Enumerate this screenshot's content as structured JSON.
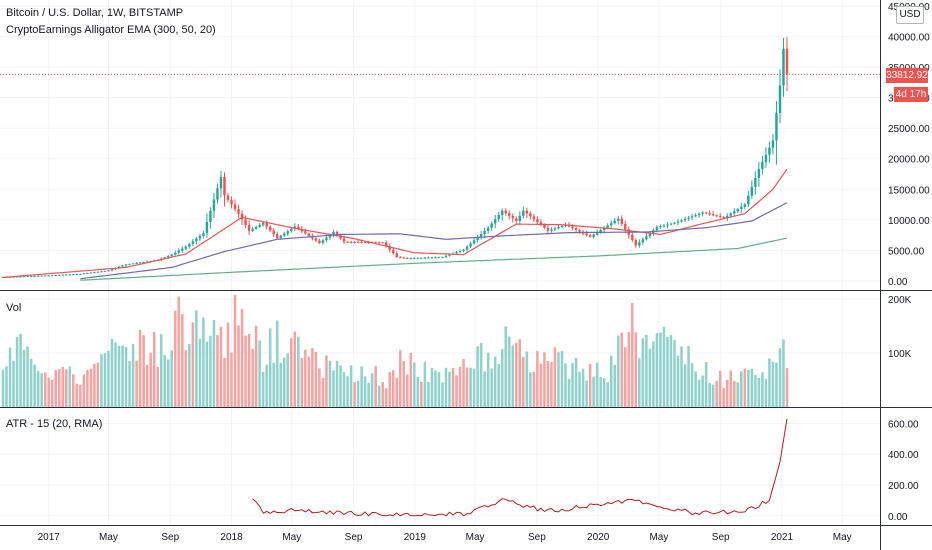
{
  "header": {
    "symbol_line": "Bitcoin / U.S. Dollar, 1W, BITSTAMP",
    "indicator_line": "CryptoEarnings Alligator EMA (300, 50, 20)",
    "currency_button": "USD"
  },
  "price_badge": "33812.92",
  "countdown_badge": "4d 17h",
  "colors": {
    "up": "#26a69a",
    "down": "#ef5350",
    "vol_up": "#8fd1cb",
    "vol_down": "#f4a3a1",
    "ema20": "#ef5350",
    "ema50": "#7068b0",
    "ema300": "#5fae85",
    "atr": "#b71c1c"
  },
  "chart_data": [
    {
      "id": "price",
      "type": "candlestick",
      "title": "Bitcoin / U.S. Dollar, 1W, BITSTAMP",
      "y_ticks": [
        "0.00",
        "5000.00",
        "10000.00",
        "15000.00",
        "20000.00",
        "25000.00",
        "30000.00",
        "35000.00",
        "40000.00",
        "45000.00"
      ],
      "ylim": [
        -1500,
        46000
      ],
      "x_ticks": [
        "2017",
        "May",
        "Sep",
        "2018",
        "May",
        "Sep",
        "2019",
        "May",
        "Sep",
        "2020",
        "May",
        "Sep",
        "2021",
        "May"
      ],
      "last_price": 33812.92,
      "anchors": [
        {
          "date": "2016-10-03",
          "close": 620
        },
        {
          "date": "2017-01-02",
          "close": 900
        },
        {
          "date": "2017-03-06",
          "close": 1150
        },
        {
          "date": "2017-05-01",
          "close": 1700
        },
        {
          "date": "2017-06-05",
          "close": 2700
        },
        {
          "date": "2017-08-07",
          "close": 3400
        },
        {
          "date": "2017-09-04",
          "close": 4300
        },
        {
          "date": "2017-10-02",
          "close": 5600
        },
        {
          "date": "2017-11-06",
          "close": 7800
        },
        {
          "date": "2017-12-11",
          "close": 17000
        },
        {
          "date": "2017-12-18",
          "close": 14000
        },
        {
          "date": "2018-01-15",
          "close": 11000
        },
        {
          "date": "2018-02-05",
          "close": 8200
        },
        {
          "date": "2018-03-05",
          "close": 9500
        },
        {
          "date": "2018-04-02",
          "close": 7000
        },
        {
          "date": "2018-05-07",
          "close": 8900
        },
        {
          "date": "2018-06-25",
          "close": 6200
        },
        {
          "date": "2018-07-23",
          "close": 8000
        },
        {
          "date": "2018-08-13",
          "close": 6400
        },
        {
          "date": "2018-10-29",
          "close": 6300
        },
        {
          "date": "2018-11-26",
          "close": 3900
        },
        {
          "date": "2018-12-17",
          "close": 3700
        },
        {
          "date": "2019-02-25",
          "close": 3900
        },
        {
          "date": "2019-04-08",
          "close": 5100
        },
        {
          "date": "2019-05-27",
          "close": 8700
        },
        {
          "date": "2019-06-24",
          "close": 11500
        },
        {
          "date": "2019-07-22",
          "close": 9800
        },
        {
          "date": "2019-08-05",
          "close": 11500
        },
        {
          "date": "2019-09-23",
          "close": 8200
        },
        {
          "date": "2019-10-28",
          "close": 9200
        },
        {
          "date": "2019-12-16",
          "close": 7200
        },
        {
          "date": "2020-02-10",
          "close": 10200
        },
        {
          "date": "2020-03-16",
          "close": 5800
        },
        {
          "date": "2020-04-27",
          "close": 8800
        },
        {
          "date": "2020-06-01",
          "close": 9500
        },
        {
          "date": "2020-07-27",
          "close": 11200
        },
        {
          "date": "2020-09-07",
          "close": 10300
        },
        {
          "date": "2020-10-19",
          "close": 12500
        },
        {
          "date": "2020-11-16",
          "close": 18300
        },
        {
          "date": "2020-12-14",
          "close": 23000
        },
        {
          "date": "2020-12-28",
          "close": 32000
        },
        {
          "date": "2021-01-04",
          "close": 38000
        },
        {
          "date": "2021-01-11",
          "close": 33812.92
        }
      ],
      "series": [
        {
          "name": "EMA 20",
          "points": [
            {
              "date": "2016-10-03",
              "value": 560
            },
            {
              "date": "2017-06-05",
              "value": 2200
            },
            {
              "date": "2017-10-02",
              "value": 4400
            },
            {
              "date": "2018-01-22",
              "value": 10400
            },
            {
              "date": "2018-05-07",
              "value": 8600
            },
            {
              "date": "2018-09-03",
              "value": 6900
            },
            {
              "date": "2018-12-31",
              "value": 4600
            },
            {
              "date": "2019-04-08",
              "value": 4300
            },
            {
              "date": "2019-07-22",
              "value": 9300
            },
            {
              "date": "2019-10-21",
              "value": 9200
            },
            {
              "date": "2020-02-03",
              "value": 8500
            },
            {
              "date": "2020-05-04",
              "value": 7600
            },
            {
              "date": "2020-08-03",
              "value": 9500
            },
            {
              "date": "2020-10-19",
              "value": 11000
            },
            {
              "date": "2020-12-14",
              "value": 15000
            },
            {
              "date": "2021-01-11",
              "value": 18300
            }
          ]
        },
        {
          "name": "EMA 50",
          "points": [
            {
              "date": "2017-03-06",
              "value": 350
            },
            {
              "date": "2017-09-04",
              "value": 2200
            },
            {
              "date": "2017-12-18",
              "value": 4800
            },
            {
              "date": "2018-04-02",
              "value": 6800
            },
            {
              "date": "2018-08-06",
              "value": 7600
            },
            {
              "date": "2018-12-03",
              "value": 7700
            },
            {
              "date": "2019-03-04",
              "value": 6800
            },
            {
              "date": "2019-07-01",
              "value": 7400
            },
            {
              "date": "2019-11-04",
              "value": 7900
            },
            {
              "date": "2020-04-06",
              "value": 8000
            },
            {
              "date": "2020-08-03",
              "value": 8700
            },
            {
              "date": "2020-11-02",
              "value": 9800
            },
            {
              "date": "2021-01-11",
              "value": 12800
            }
          ]
        },
        {
          "name": "EMA 300",
          "points": [
            {
              "date": "2017-03-06",
              "value": 100
            },
            {
              "date": "2018-01-01",
              "value": 1400
            },
            {
              "date": "2019-01-07",
              "value": 2900
            },
            {
              "date": "2020-01-06",
              "value": 4100
            },
            {
              "date": "2020-10-05",
              "value": 5300
            },
            {
              "date": "2021-01-11",
              "value": 7000
            }
          ]
        }
      ]
    },
    {
      "id": "volume",
      "type": "bar",
      "title": "Vol",
      "y_ticks": [
        "100K",
        "200K"
      ],
      "ylim": [
        0,
        215000
      ],
      "points": [
        {
          "date": "2016-10-03",
          "value": 65000,
          "dir": "up"
        },
        {
          "date": "2016-10-31",
          "value": 130000,
          "dir": "up"
        },
        {
          "date": "2016-12-05",
          "value": 80000,
          "dir": "up"
        },
        {
          "date": "2017-01-09",
          "value": 90000,
          "dir": "down"
        },
        {
          "date": "2017-03-13",
          "value": 70000,
          "dir": "down"
        },
        {
          "date": "2017-05-22",
          "value": 155000,
          "dir": "up"
        },
        {
          "date": "2017-07-17",
          "value": 140000,
          "dir": "down"
        },
        {
          "date": "2017-08-28",
          "value": 130000,
          "dir": "up"
        },
        {
          "date": "2017-09-11",
          "value": 190000,
          "dir": "down"
        },
        {
          "date": "2017-11-13",
          "value": 160000,
          "dir": "up"
        },
        {
          "date": "2017-12-18",
          "value": 165000,
          "dir": "down"
        },
        {
          "date": "2018-02-05",
          "value": 225000,
          "dir": "down"
        },
        {
          "date": "2018-03-05",
          "value": 105000,
          "dir": "up"
        },
        {
          "date": "2018-04-02",
          "value": 150000,
          "dir": "up"
        },
        {
          "date": "2018-06-11",
          "value": 95000,
          "dir": "down"
        },
        {
          "date": "2018-08-06",
          "value": 80000,
          "dir": "up"
        },
        {
          "date": "2018-11-19",
          "value": 60000,
          "dir": "down"
        },
        {
          "date": "2018-12-03",
          "value": 100000,
          "dir": "down"
        },
        {
          "date": "2019-02-18",
          "value": 70000,
          "dir": "up"
        },
        {
          "date": "2019-05-13",
          "value": 115000,
          "dir": "up"
        },
        {
          "date": "2019-06-24",
          "value": 135000,
          "dir": "up"
        },
        {
          "date": "2019-09-23",
          "value": 100000,
          "dir": "down"
        },
        {
          "date": "2019-10-28",
          "value": 95000,
          "dir": "up"
        },
        {
          "date": "2020-01-20",
          "value": 75000,
          "dir": "up"
        },
        {
          "date": "2020-03-09",
          "value": 175000,
          "dir": "down"
        },
        {
          "date": "2020-03-23",
          "value": 155000,
          "dir": "up"
        },
        {
          "date": "2020-05-11",
          "value": 140000,
          "dir": "up"
        },
        {
          "date": "2020-07-27",
          "value": 80000,
          "dir": "up"
        },
        {
          "date": "2020-09-07",
          "value": 60000,
          "dir": "down"
        },
        {
          "date": "2020-11-16",
          "value": 70000,
          "dir": "up"
        },
        {
          "date": "2020-12-28",
          "value": 95000,
          "dir": "up"
        },
        {
          "date": "2021-01-04",
          "value": 130000,
          "dir": "up"
        },
        {
          "date": "2021-01-11",
          "value": 65000,
          "dir": "down"
        }
      ]
    },
    {
      "id": "atr",
      "type": "line",
      "title": "ATR - 15 (20, RMA)",
      "y_ticks": [
        "0.00",
        "200.00",
        "400.00",
        "600.00"
      ],
      "ylim": [
        -60,
        700
      ],
      "points": [
        {
          "date": "2018-02-12",
          "value": 110
        },
        {
          "date": "2018-03-05",
          "value": 25
        },
        {
          "date": "2018-05-07",
          "value": 35
        },
        {
          "date": "2018-08-06",
          "value": 20
        },
        {
          "date": "2018-11-26",
          "value": 5
        },
        {
          "date": "2019-04-08",
          "value": 10
        },
        {
          "date": "2019-06-24",
          "value": 100
        },
        {
          "date": "2019-09-23",
          "value": 30
        },
        {
          "date": "2020-03-16",
          "value": 100
        },
        {
          "date": "2020-07-06",
          "value": 20
        },
        {
          "date": "2020-10-19",
          "value": 30
        },
        {
          "date": "2020-12-07",
          "value": 100
        },
        {
          "date": "2020-12-28",
          "value": 350
        },
        {
          "date": "2021-01-11",
          "value": 630
        }
      ]
    }
  ]
}
